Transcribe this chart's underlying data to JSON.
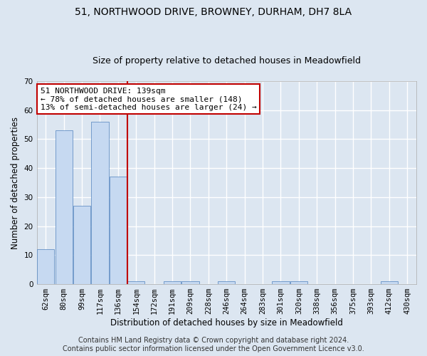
{
  "title_line1": "51, NORTHWOOD DRIVE, BROWNEY, DURHAM, DH7 8LA",
  "title_line2": "Size of property relative to detached houses in Meadowfield",
  "xlabel": "Distribution of detached houses by size in Meadowfield",
  "ylabel": "Number of detached properties",
  "categories": [
    "62sqm",
    "80sqm",
    "99sqm",
    "117sqm",
    "136sqm",
    "154sqm",
    "172sqm",
    "191sqm",
    "209sqm",
    "228sqm",
    "246sqm",
    "264sqm",
    "283sqm",
    "301sqm",
    "320sqm",
    "338sqm",
    "356sqm",
    "375sqm",
    "393sqm",
    "412sqm",
    "430sqm"
  ],
  "values": [
    12,
    53,
    27,
    56,
    37,
    1,
    0,
    1,
    1,
    0,
    1,
    0,
    0,
    1,
    1,
    0,
    0,
    0,
    0,
    1,
    0
  ],
  "bar_color": "#c6d9f1",
  "bar_edge_color": "#4f81bd",
  "vline_color": "#c00000",
  "annotation_text": "51 NORTHWOOD DRIVE: 139sqm\n← 78% of detached houses are smaller (148)\n13% of semi-detached houses are larger (24) →",
  "annotation_box_color": "#ffffff",
  "annotation_box_edge": "#c00000",
  "ylim": [
    0,
    70
  ],
  "yticks": [
    0,
    10,
    20,
    30,
    40,
    50,
    60,
    70
  ],
  "footer_line1": "Contains HM Land Registry data © Crown copyright and database right 2024.",
  "footer_line2": "Contains public sector information licensed under the Open Government Licence v3.0.",
  "bg_color": "#dce6f1",
  "plot_bg_color": "#dce6f1",
  "grid_color": "#ffffff",
  "title_fontsize": 10,
  "subtitle_fontsize": 9,
  "axis_label_fontsize": 8.5,
  "tick_fontsize": 7.5,
  "annotation_fontsize": 8,
  "footer_fontsize": 7
}
